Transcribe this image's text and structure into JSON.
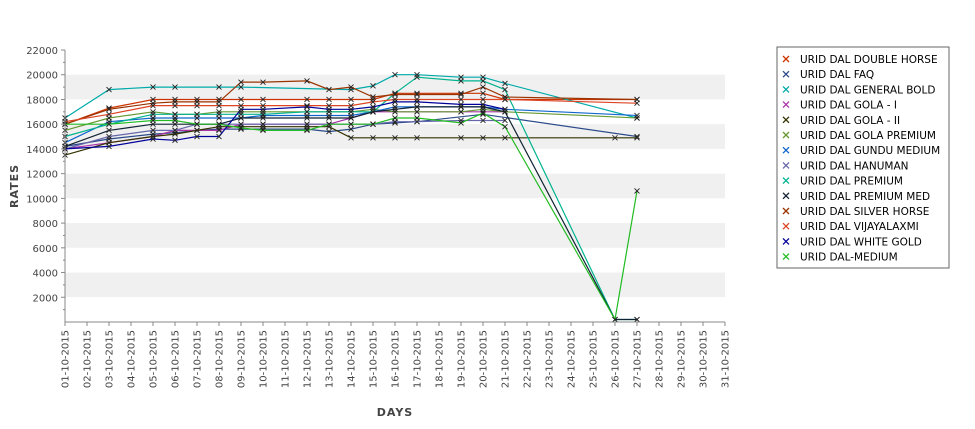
{
  "chart_data": {
    "type": "line",
    "xlabel": "DAYS",
    "ylabel": "RATES",
    "ylim": [
      0,
      22000
    ],
    "yticks": [
      2000,
      4000,
      6000,
      8000,
      10000,
      12000,
      14000,
      16000,
      18000,
      20000,
      22000
    ],
    "grid": "alternating horizontal bands",
    "legend_position": "right",
    "categories": [
      "01-10-2015",
      "02-10-2015",
      "03-10-2015",
      "04-10-2015",
      "05-10-2015",
      "06-10-2015",
      "07-10-2015",
      "08-10-2015",
      "09-10-2015",
      "10-10-2015",
      "11-10-2015",
      "12-10-2015",
      "13-10-2015",
      "14-10-2015",
      "15-10-2015",
      "16-10-2015",
      "17-10-2015",
      "18-10-2015",
      "19-10-2015",
      "20-10-2015",
      "21-10-2015",
      "22-10-2015",
      "23-10-2015",
      "24-10-2015",
      "25-10-2015",
      "26-10-2015",
      "27-10-2015",
      "28-10-2015",
      "29-10-2015",
      "30-10-2015",
      "31-10-2015"
    ],
    "series": [
      {
        "name": "URID DAL DOUBLE HORSE",
        "color": "#cc3300",
        "values": [
          16000,
          null,
          17300,
          null,
          18000,
          18000,
          18000,
          18000,
          18000,
          18000,
          null,
          18000,
          18000,
          18000,
          18000,
          18500,
          18500,
          null,
          18500,
          18500,
          18000,
          null,
          null,
          null,
          null,
          null,
          18000,
          null,
          null,
          null,
          null
        ]
      },
      {
        "name": "URID DAL FAQ",
        "color": "#2b4a8a",
        "values": [
          14200,
          null,
          14800,
          null,
          15200,
          15300,
          15500,
          15600,
          15600,
          15600,
          null,
          15600,
          15400,
          15600,
          16000,
          16100,
          16200,
          null,
          null,
          16800,
          null,
          null,
          null,
          null,
          null,
          null,
          15000,
          null,
          null,
          null,
          null
        ]
      },
      {
        "name": "URID DAL GENERAL BOLD",
        "color": "#00aaaa",
        "values": [
          16500,
          null,
          18800,
          null,
          19000,
          19000,
          null,
          19000,
          19000,
          null,
          null,
          null,
          null,
          18800,
          19100,
          20000,
          20000,
          null,
          19800,
          19800,
          19300,
          null,
          null,
          null,
          null,
          null,
          16500,
          null,
          null,
          null,
          null
        ]
      },
      {
        "name": "URID DAL GOLA - I",
        "color": "#aa33aa",
        "values": [
          14000,
          null,
          14500,
          null,
          15000,
          15500,
          15500,
          15500,
          16000,
          16000,
          null,
          16000,
          16000,
          16500,
          17000,
          17000,
          17000,
          null,
          17000,
          17000,
          17000,
          null,
          null,
          null,
          null,
          null,
          null,
          null,
          null,
          null,
          null
        ]
      },
      {
        "name": "URID DAL GOLA - II",
        "color": "#333300",
        "values": [
          13500,
          null,
          14500,
          null,
          15000,
          15200,
          15500,
          15800,
          15800,
          15800,
          null,
          15800,
          15800,
          14900,
          14900,
          14900,
          14900,
          null,
          14900,
          14900,
          14900,
          null,
          null,
          null,
          null,
          14900,
          14900,
          null,
          null,
          null,
          null
        ]
      },
      {
        "name": "URID DAL GOLA PREMIUM",
        "color": "#669933",
        "values": [
          15500,
          null,
          16500,
          null,
          17000,
          16800,
          16800,
          17000,
          17000,
          17000,
          null,
          17000,
          17000,
          17000,
          17200,
          17000,
          17000,
          null,
          17000,
          17200,
          17000,
          null,
          null,
          null,
          null,
          null,
          16500,
          null,
          null,
          null,
          null
        ]
      },
      {
        "name": "URID DAL GUNDU MEDIUM",
        "color": "#1166cc",
        "values": [
          14500,
          null,
          16200,
          null,
          16500,
          16500,
          16500,
          16500,
          16500,
          16700,
          null,
          16700,
          16700,
          16700,
          17000,
          17400,
          17400,
          null,
          17400,
          17400,
          17200,
          null,
          null,
          null,
          null,
          null,
          16700,
          null,
          null,
          null,
          null
        ]
      },
      {
        "name": "URID DAL HANUMAN",
        "color": "#6666aa",
        "values": [
          14000,
          null,
          15000,
          null,
          15500,
          15500,
          16000,
          16000,
          16000,
          16000,
          null,
          16000,
          16000,
          16000,
          16000,
          16200,
          16200,
          null,
          16300,
          16300,
          16300,
          null,
          null,
          null,
          null,
          null,
          null,
          null,
          null,
          null,
          null
        ]
      },
      {
        "name": "URID DAL PREMIUM",
        "color": "#00b38f",
        "values": [
          15000,
          null,
          16000,
          null,
          16800,
          16800,
          16800,
          16800,
          16800,
          16800,
          null,
          17000,
          17000,
          17000,
          17000,
          18500,
          19800,
          null,
          19500,
          19500,
          18800,
          null,
          null,
          null,
          null,
          200,
          200,
          null,
          null,
          null,
          null
        ]
      },
      {
        "name": "URID DAL PREMIUM MED",
        "color": "#112233",
        "values": [
          14200,
          null,
          15500,
          null,
          16000,
          16000,
          16000,
          16000,
          16500,
          16500,
          null,
          16500,
          16500,
          16500,
          17000,
          17200,
          17400,
          null,
          17400,
          17400,
          17000,
          null,
          null,
          null,
          null,
          200,
          200,
          null,
          null,
          null,
          null
        ]
      },
      {
        "name": "URID DAL SILVER HORSE",
        "color": "#993300",
        "values": [
          16000,
          null,
          17200,
          null,
          17700,
          17800,
          17800,
          17800,
          19400,
          19400,
          null,
          19500,
          18800,
          19000,
          18200,
          18400,
          18400,
          null,
          18400,
          19000,
          18200,
          null,
          null,
          null,
          null,
          null,
          18000,
          null,
          null,
          null,
          null
        ]
      },
      {
        "name": "URID DAL VIJAYALAXMI",
        "color": "#dd4422",
        "values": [
          16200,
          null,
          16800,
          null,
          17500,
          17500,
          17500,
          17500,
          17500,
          17500,
          null,
          17500,
          17500,
          17500,
          17800,
          18000,
          18000,
          null,
          18000,
          18000,
          18000,
          null,
          null,
          null,
          null,
          null,
          17700,
          null,
          null,
          null,
          null
        ]
      },
      {
        "name": "URID DAL WHITE GOLD",
        "color": "#000099",
        "values": [
          14000,
          null,
          14200,
          null,
          14800,
          14700,
          15000,
          15000,
          17200,
          17200,
          null,
          17400,
          17200,
          17200,
          17400,
          17800,
          17800,
          null,
          17600,
          17600,
          17200,
          null,
          null,
          null,
          null,
          null,
          null,
          null,
          null,
          null,
          null
        ]
      },
      {
        "name": "URID DAL-MEDIUM",
        "color": "#22bb22",
        "values": [
          16000,
          null,
          16000,
          null,
          16300,
          16300,
          16000,
          16000,
          15700,
          15500,
          null,
          15500,
          16000,
          16000,
          16000,
          16500,
          16500,
          null,
          16100,
          16900,
          15800,
          null,
          null,
          null,
          null,
          200,
          10600,
          null,
          null,
          null,
          null
        ]
      }
    ]
  }
}
